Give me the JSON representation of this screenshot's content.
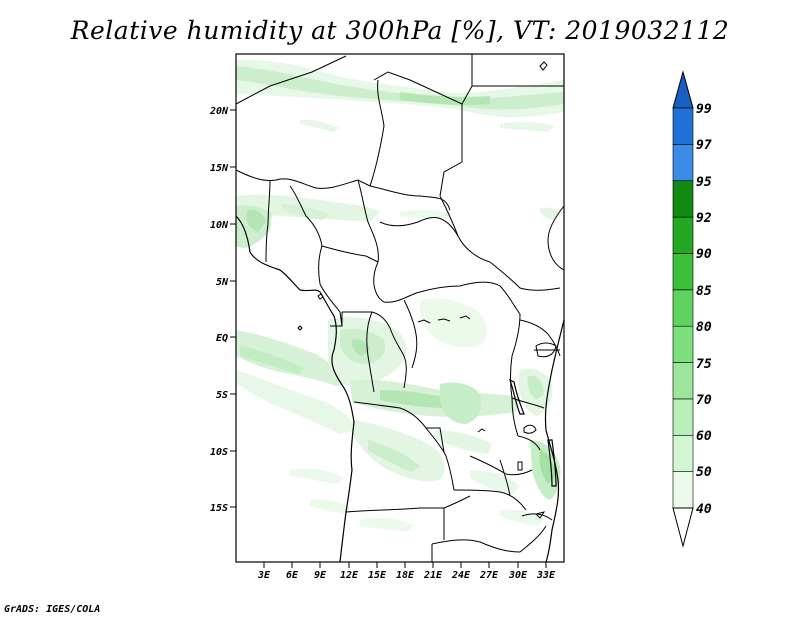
{
  "title": "Relative humidity at 300hPa [%], VT: 2019032112",
  "credit": "GrADS: IGES/COLA",
  "map": {
    "lat_labels": [
      "20N",
      "15N",
      "10N",
      "5N",
      "EQ",
      "5S",
      "10S",
      "15S"
    ],
    "lon_labels": [
      "3E",
      "6E",
      "9E",
      "12E",
      "15E",
      "18E",
      "21E",
      "24E",
      "27E",
      "30E",
      "33E"
    ],
    "lat_range": [
      -19,
      24.5
    ],
    "lon_range": [
      0,
      35
    ]
  },
  "colorbar": {
    "labels": [
      "40",
      "50",
      "60",
      "70",
      "75",
      "80",
      "85",
      "90",
      "92",
      "95",
      "97",
      "99"
    ],
    "colors": [
      "#ebfaeb",
      "#d2f5d2",
      "#b9f0b9",
      "#9be69b",
      "#7de07d",
      "#5fd35f",
      "#3cc03c",
      "#22a822",
      "#118a11",
      "#3c8be6",
      "#2070d8",
      "#1a5fc4"
    ]
  },
  "colors": {
    "humid_light": "#e6f8e6",
    "humid_mid": "#c6eec6",
    "humid_strong": "#a2e2a2",
    "border": "#000000"
  }
}
